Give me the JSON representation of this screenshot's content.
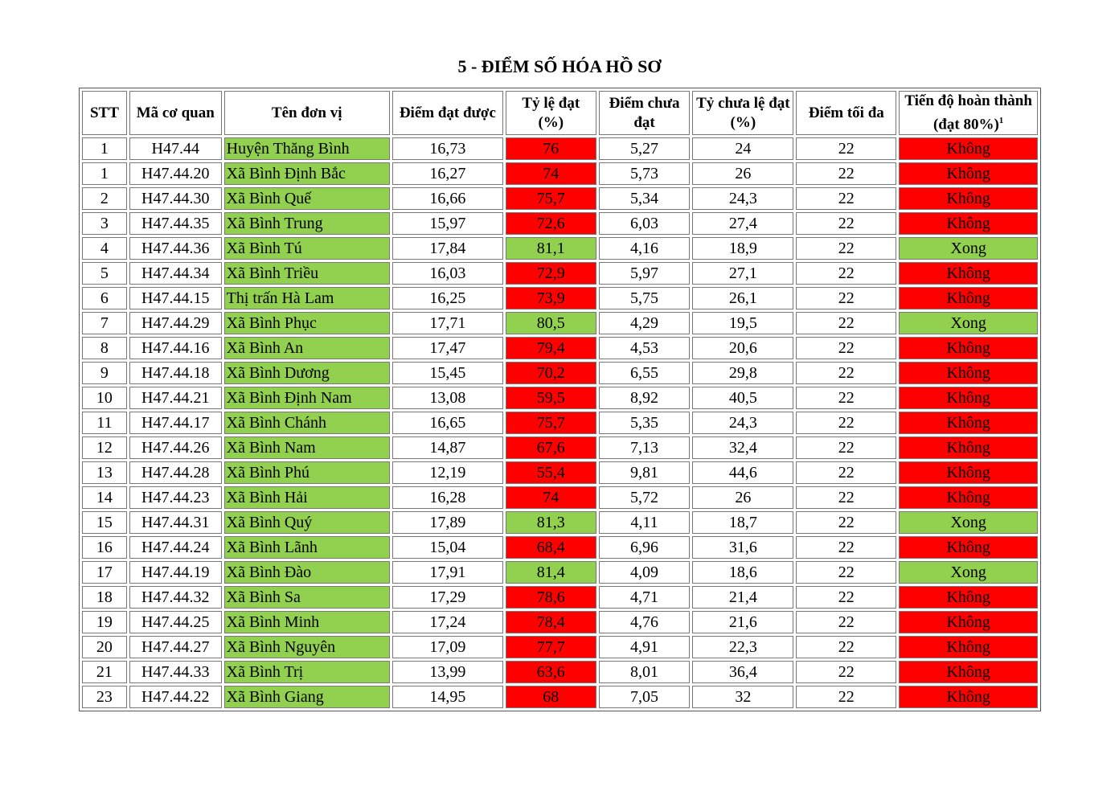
{
  "title": "5 - ĐIỂM SỐ HÓA HỒ SƠ",
  "headers": {
    "stt": "STT",
    "ma_co_quan": "Mã cơ quan",
    "ten_don_vi": "Tên đơn vị",
    "diem_dat": "Điểm đạt được",
    "ty_le_dat": "Tỷ lệ đạt (%)",
    "diem_chua_dat": "Điểm chưa đạt",
    "ty_chua_le_dat": "Tỷ chưa lệ đạt (%)",
    "diem_toi_da": "Điểm tối đa",
    "tien_do": "Tiến độ hoàn thành (đạt 80%)",
    "tien_do_footnote": "1"
  },
  "colors": {
    "green": "#92d050",
    "red": "#ff0000"
  },
  "rows": [
    {
      "stt": "1",
      "ma": "H47.44",
      "ten": "Huyện Thăng Bình",
      "diem": "16,73",
      "tyle": "76",
      "chua": "5,27",
      "tychua": "24",
      "toida": "22",
      "tiendo": "Không",
      "ok": false
    },
    {
      "stt": "1",
      "ma": "H47.44.20",
      "ten": "Xã Bình Định Bắc",
      "diem": "16,27",
      "tyle": "74",
      "chua": "5,73",
      "tychua": "26",
      "toida": "22",
      "tiendo": "Không",
      "ok": false
    },
    {
      "stt": "2",
      "ma": "H47.44.30",
      "ten": "Xã Bình Quế",
      "diem": "16,66",
      "tyle": "75,7",
      "chua": "5,34",
      "tychua": "24,3",
      "toida": "22",
      "tiendo": "Không",
      "ok": false
    },
    {
      "stt": "3",
      "ma": "H47.44.35",
      "ten": "Xã Bình Trung",
      "diem": "15,97",
      "tyle": "72,6",
      "chua": "6,03",
      "tychua": "27,4",
      "toida": "22",
      "tiendo": "Không",
      "ok": false
    },
    {
      "stt": "4",
      "ma": "H47.44.36",
      "ten": "Xã Bình Tú",
      "diem": "17,84",
      "tyle": "81,1",
      "chua": "4,16",
      "tychua": "18,9",
      "toida": "22",
      "tiendo": "Xong",
      "ok": true
    },
    {
      "stt": "5",
      "ma": "H47.44.34",
      "ten": "Xã Bình Triều",
      "diem": "16,03",
      "tyle": "72,9",
      "chua": "5,97",
      "tychua": "27,1",
      "toida": "22",
      "tiendo": "Không",
      "ok": false
    },
    {
      "stt": "6",
      "ma": "H47.44.15",
      "ten": "Thị trấn Hà Lam",
      "diem": "16,25",
      "tyle": "73,9",
      "chua": "5,75",
      "tychua": "26,1",
      "toida": "22",
      "tiendo": "Không",
      "ok": false
    },
    {
      "stt": "7",
      "ma": "H47.44.29",
      "ten": "Xã Bình Phục",
      "diem": "17,71",
      "tyle": "80,5",
      "chua": "4,29",
      "tychua": "19,5",
      "toida": "22",
      "tiendo": "Xong",
      "ok": true
    },
    {
      "stt": "8",
      "ma": "H47.44.16",
      "ten": "Xã Bình An",
      "diem": "17,47",
      "tyle": "79,4",
      "chua": "4,53",
      "tychua": "20,6",
      "toida": "22",
      "tiendo": "Không",
      "ok": false
    },
    {
      "stt": "9",
      "ma": "H47.44.18",
      "ten": "Xã Bình Dương",
      "diem": "15,45",
      "tyle": "70,2",
      "chua": "6,55",
      "tychua": "29,8",
      "toida": "22",
      "tiendo": "Không",
      "ok": false
    },
    {
      "stt": "10",
      "ma": "H47.44.21",
      "ten": "Xã Bình Định Nam",
      "diem": "13,08",
      "tyle": "59,5",
      "chua": "8,92",
      "tychua": "40,5",
      "toida": "22",
      "tiendo": "Không",
      "ok": false
    },
    {
      "stt": "11",
      "ma": "H47.44.17",
      "ten": "Xã Bình Chánh",
      "diem": "16,65",
      "tyle": "75,7",
      "chua": "5,35",
      "tychua": "24,3",
      "toida": "22",
      "tiendo": "Không",
      "ok": false
    },
    {
      "stt": "12",
      "ma": "H47.44.26",
      "ten": "Xã Bình Nam",
      "diem": "14,87",
      "tyle": "67,6",
      "chua": "7,13",
      "tychua": "32,4",
      "toida": "22",
      "tiendo": "Không",
      "ok": false
    },
    {
      "stt": "13",
      "ma": "H47.44.28",
      "ten": "Xã Bình Phú",
      "diem": "12,19",
      "tyle": "55,4",
      "chua": "9,81",
      "tychua": "44,6",
      "toida": "22",
      "tiendo": "Không",
      "ok": false
    },
    {
      "stt": "14",
      "ma": "H47.44.23",
      "ten": "Xã Bình Hải",
      "diem": "16,28",
      "tyle": "74",
      "chua": "5,72",
      "tychua": "26",
      "toida": "22",
      "tiendo": "Không",
      "ok": false
    },
    {
      "stt": "15",
      "ma": "H47.44.31",
      "ten": "Xã Bình Quý",
      "diem": "17,89",
      "tyle": "81,3",
      "chua": "4,11",
      "tychua": "18,7",
      "toida": "22",
      "tiendo": "Xong",
      "ok": true
    },
    {
      "stt": "16",
      "ma": "H47.44.24",
      "ten": "Xã Bình Lãnh",
      "diem": "15,04",
      "tyle": "68,4",
      "chua": "6,96",
      "tychua": "31,6",
      "toida": "22",
      "tiendo": "Không",
      "ok": false
    },
    {
      "stt": "17",
      "ma": "H47.44.19",
      "ten": "Xã Bình Đào",
      "diem": "17,91",
      "tyle": "81,4",
      "chua": "4,09",
      "tychua": "18,6",
      "toida": "22",
      "tiendo": "Xong",
      "ok": true
    },
    {
      "stt": "18",
      "ma": "H47.44.32",
      "ten": "Xã Bình Sa",
      "diem": "17,29",
      "tyle": "78,6",
      "chua": "4,71",
      "tychua": "21,4",
      "toida": "22",
      "tiendo": "Không",
      "ok": false
    },
    {
      "stt": "19",
      "ma": "H47.44.25",
      "ten": "Xã Bình Minh",
      "diem": "17,24",
      "tyle": "78,4",
      "chua": "4,76",
      "tychua": "21,6",
      "toida": "22",
      "tiendo": "Không",
      "ok": false
    },
    {
      "stt": "20",
      "ma": "H47.44.27",
      "ten": "Xã Bình Nguyên",
      "diem": "17,09",
      "tyle": "77,7",
      "chua": "4,91",
      "tychua": "22,3",
      "toida": "22",
      "tiendo": "Không",
      "ok": false
    },
    {
      "stt": "21",
      "ma": "H47.44.33",
      "ten": "Xã Bình Trị",
      "diem": "13,99",
      "tyle": "63,6",
      "chua": "8,01",
      "tychua": "36,4",
      "toida": "22",
      "tiendo": "Không",
      "ok": false
    },
    {
      "stt": "23",
      "ma": "H47.44.22",
      "ten": "Xã Bình Giang",
      "diem": "14,95",
      "tyle": "68",
      "chua": "7,05",
      "tychua": "32",
      "toida": "22",
      "tiendo": "Không",
      "ok": false
    }
  ]
}
